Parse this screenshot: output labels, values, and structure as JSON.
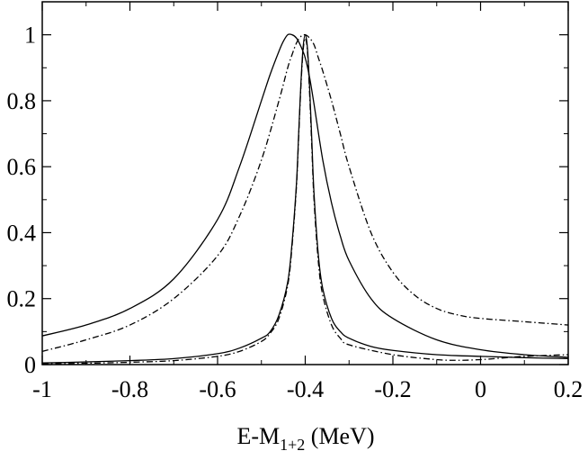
{
  "chart_data": {
    "type": "line",
    "title": "",
    "xlabel": "E-M",
    "xlabel_subscript": "1+2",
    "xlabel_unit": " (MeV)",
    "ylabel": "",
    "xlim": [
      -1.0,
      0.2
    ],
    "ylim": [
      0.0,
      1.1
    ],
    "xticks": [
      -1,
      -0.8,
      -0.6,
      -0.4,
      -0.2,
      0,
      0.2
    ],
    "xtick_labels": [
      "-1",
      "-0.8",
      "-0.6",
      "-0.4",
      "-0.2",
      "0",
      "0.2"
    ],
    "yticks": [
      0,
      0.2,
      0.4,
      0.6,
      0.8,
      1
    ],
    "ytick_labels": [
      "0",
      "0.2",
      "0.4",
      "0.6",
      "0.8",
      "1"
    ],
    "grid": false,
    "legend": "none",
    "series": [
      {
        "style": "solid",
        "color": "#000000",
        "x": [
          -1.0,
          -0.9,
          -0.8,
          -0.7,
          -0.6,
          -0.55,
          -0.5,
          -0.48,
          -0.46,
          -0.45,
          -0.44,
          -0.43,
          -0.42,
          -0.41,
          -0.4,
          -0.39,
          -0.38,
          -0.36,
          -0.34,
          -0.32,
          -0.3,
          -0.25,
          -0.2,
          -0.1,
          0.0,
          0.1,
          0.2
        ],
        "y": [
          0.087,
          0.12,
          0.17,
          0.26,
          0.44,
          0.6,
          0.8,
          0.88,
          0.95,
          0.98,
          1.0,
          1.0,
          0.99,
          0.965,
          0.93,
          0.87,
          0.79,
          0.62,
          0.49,
          0.39,
          0.315,
          0.2,
          0.14,
          0.075,
          0.045,
          0.03,
          0.022
        ]
      },
      {
        "style": "dashdot",
        "color": "#000000",
        "x": [
          -1.0,
          -0.9,
          -0.8,
          -0.7,
          -0.6,
          -0.55,
          -0.5,
          -0.46,
          -0.44,
          -0.43,
          -0.42,
          -0.41,
          -0.4,
          -0.39,
          -0.38,
          -0.37,
          -0.36,
          -0.34,
          -0.32,
          -0.3,
          -0.25,
          -0.2,
          -0.15,
          -0.1,
          -0.05,
          0.0,
          0.1,
          0.2
        ],
        "y": [
          0.04,
          0.075,
          0.12,
          0.2,
          0.33,
          0.45,
          0.62,
          0.8,
          0.9,
          0.94,
          0.975,
          0.995,
          1.0,
          0.99,
          0.97,
          0.93,
          0.89,
          0.8,
          0.7,
          0.6,
          0.4,
          0.28,
          0.21,
          0.17,
          0.15,
          0.14,
          0.13,
          0.12
        ]
      },
      {
        "style": "solid",
        "color": "#000000",
        "x": [
          -1.0,
          -0.9,
          -0.8,
          -0.7,
          -0.6,
          -0.55,
          -0.5,
          -0.48,
          -0.46,
          -0.44,
          -0.43,
          -0.42,
          -0.415,
          -0.41,
          -0.405,
          -0.4,
          -0.395,
          -0.39,
          -0.385,
          -0.38,
          -0.37,
          -0.36,
          -0.34,
          -0.32,
          -0.3,
          -0.25,
          -0.2,
          -0.1,
          0.0,
          0.1,
          0.2
        ],
        "y": [
          0.005,
          0.008,
          0.012,
          0.018,
          0.033,
          0.05,
          0.08,
          0.1,
          0.15,
          0.25,
          0.37,
          0.55,
          0.7,
          0.85,
          0.96,
          1.0,
          0.96,
          0.84,
          0.68,
          0.52,
          0.33,
          0.23,
          0.14,
          0.1,
          0.08,
          0.055,
          0.043,
          0.03,
          0.025,
          0.021,
          0.018
        ]
      },
      {
        "style": "dashdot",
        "color": "#000000",
        "x": [
          -1.0,
          -0.9,
          -0.8,
          -0.7,
          -0.6,
          -0.55,
          -0.5,
          -0.48,
          -0.46,
          -0.44,
          -0.43,
          -0.42,
          -0.415,
          -0.41,
          -0.405,
          -0.4,
          -0.395,
          -0.39,
          -0.385,
          -0.38,
          -0.37,
          -0.36,
          -0.34,
          -0.32,
          -0.3,
          -0.2,
          -0.1,
          -0.05,
          0.0,
          0.05,
          0.1,
          0.2
        ],
        "y": [
          0.002,
          0.004,
          0.007,
          0.012,
          0.025,
          0.04,
          0.07,
          0.095,
          0.14,
          0.24,
          0.36,
          0.54,
          0.69,
          0.84,
          0.95,
          0.99,
          0.95,
          0.82,
          0.66,
          0.5,
          0.31,
          0.21,
          0.12,
          0.08,
          0.06,
          0.03,
          0.015,
          0.013,
          0.015,
          0.02,
          0.025,
          0.03
        ]
      }
    ]
  }
}
